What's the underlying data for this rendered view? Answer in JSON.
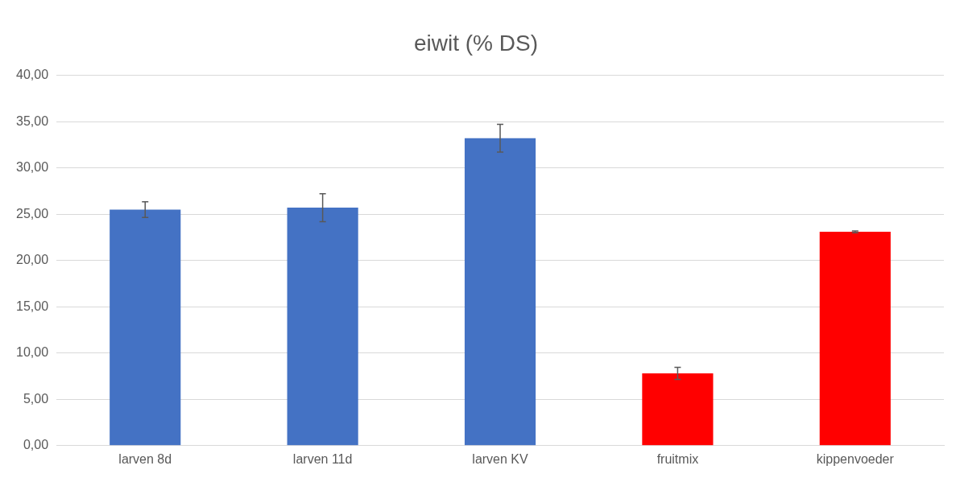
{
  "chart_data": {
    "type": "bar",
    "title": "eiwit (% DS)",
    "categories": [
      "larven 8d",
      "larven 11d",
      "larven KV",
      "fruitmix",
      "kippenvoeder"
    ],
    "values": [
      25.5,
      25.7,
      33.2,
      7.8,
      23.1
    ],
    "colors": [
      "#4472c4",
      "#4472c4",
      "#4472c4",
      "#ff0000",
      "#ff0000"
    ],
    "errors": [
      0.85,
      1.5,
      1.5,
      0.65,
      0.1
    ],
    "ylim": [
      0,
      40
    ],
    "yticks": [
      {
        "value": 0,
        "label": "0,00"
      },
      {
        "value": 5,
        "label": "5,00"
      },
      {
        "value": 10,
        "label": "10,00"
      },
      {
        "value": 15,
        "label": "15,00"
      },
      {
        "value": 20,
        "label": "20,00"
      },
      {
        "value": 25,
        "label": "25,00"
      },
      {
        "value": 30,
        "label": "30,00"
      },
      {
        "value": 35,
        "label": "35,00"
      },
      {
        "value": 40,
        "label": "40,00"
      }
    ],
    "grid": "y"
  }
}
